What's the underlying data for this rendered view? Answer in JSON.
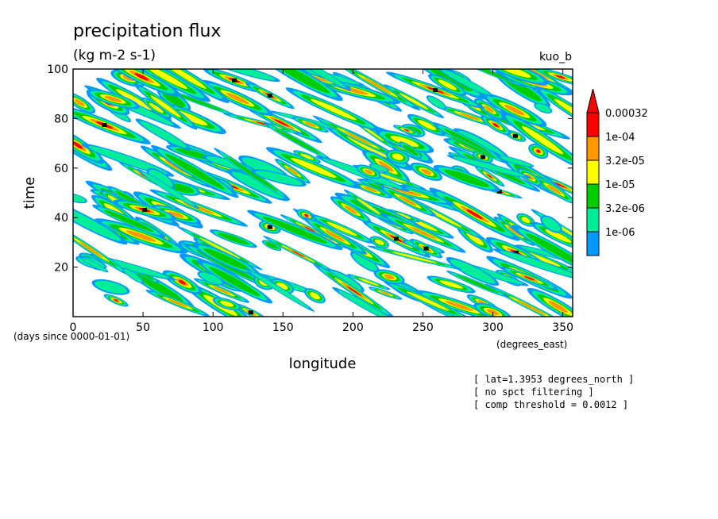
{
  "chart_data": {
    "type": "heatmap",
    "title": "precipitation flux",
    "units": "(kg m-2 s-1)",
    "run_label": "kuo_b",
    "xlabel": "longitude",
    "ylabel": "time",
    "x_units": "(degrees_east)",
    "y_units": "(days since 0000-01-01)",
    "xlim": [
      0,
      357
    ],
    "ylim": [
      0,
      100
    ],
    "x_ticks": [
      "0",
      "50",
      "100",
      "150",
      "200",
      "250",
      "300",
      "350"
    ],
    "y_ticks": [
      "20",
      "40",
      "60",
      "80",
      "100"
    ],
    "colorbar": {
      "labels": [
        "0.00032",
        "1e-04",
        "3.2e-05",
        "1e-05",
        "3.2e-06",
        "1e-06"
      ],
      "colors": [
        "#ff0000",
        "#ff9900",
        "#ffff00",
        "#00cc00",
        "#00ee99",
        "#0099ff"
      ],
      "over_color": "#ff0000"
    },
    "notes": [
      "[ lat=1.3953 degrees_north ]",
      "[ no spct filtering ]",
      "[ comp threshold = 0.0012 ]"
    ],
    "grid": false
  }
}
